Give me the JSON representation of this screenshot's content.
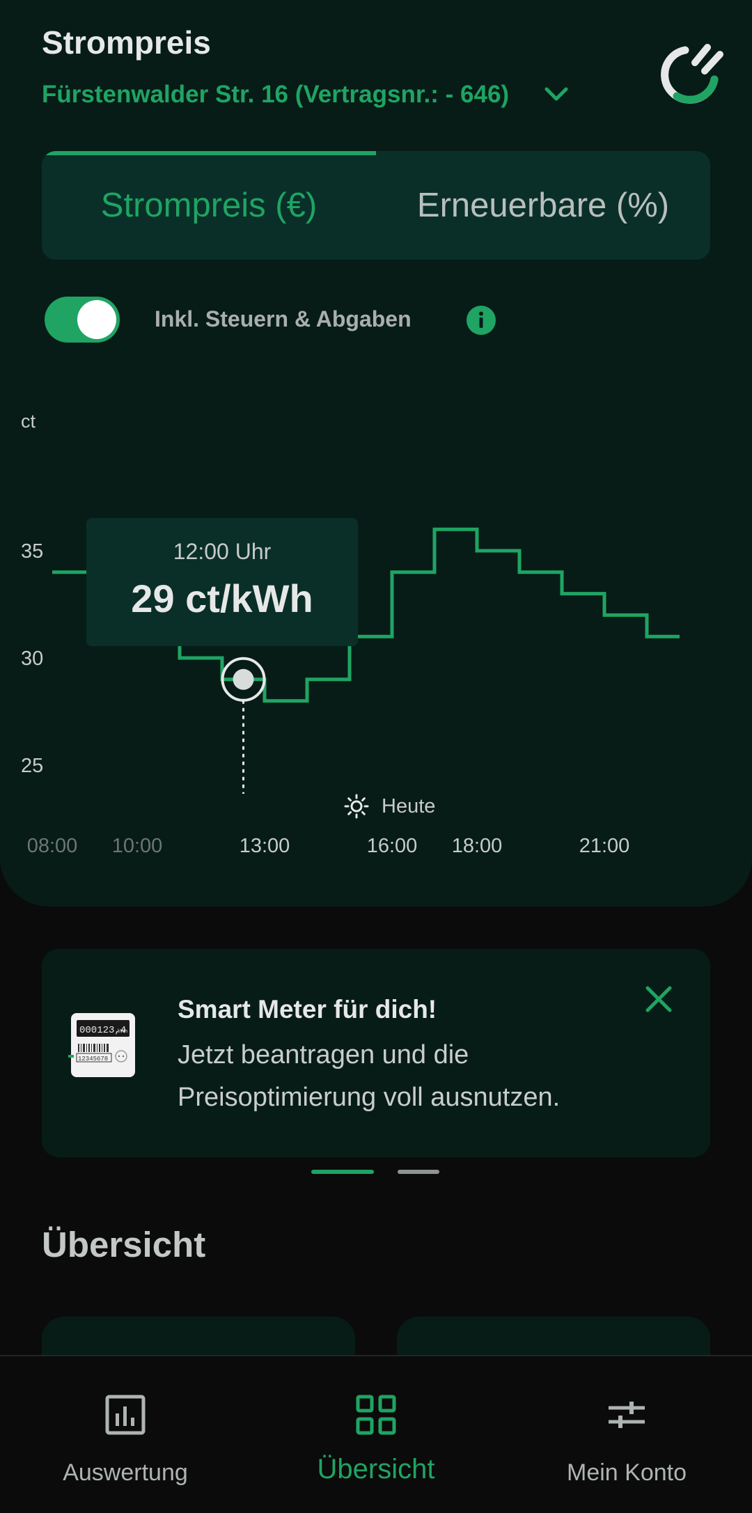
{
  "header": {
    "title": "Strompreis",
    "contract": "Fürstenwalder Str. 16 (Vertragsnr.: - 646)"
  },
  "tabs": [
    {
      "label": "Strompreis (€)",
      "active": true
    },
    {
      "label": "Erneuerbare (%)",
      "active": false
    }
  ],
  "toggle": {
    "label": "Inkl. Steuern & Abgaben",
    "on": true
  },
  "chart_data": {
    "type": "line",
    "step": true,
    "ylabel": "ct",
    "yticks": [
      "35",
      "30",
      "25"
    ],
    "xticks": [
      "08:00",
      "10:00",
      "13:00",
      "16:00",
      "18:00",
      "21:00"
    ],
    "ylim": [
      23,
      40
    ],
    "x_hours": [
      8,
      9,
      10,
      11,
      12,
      13,
      14,
      15,
      16,
      17,
      18,
      19,
      20,
      21,
      22
    ],
    "values": [
      34,
      32,
      31,
      30,
      29,
      28,
      29,
      31,
      34,
      36,
      35,
      34,
      33,
      32,
      31
    ],
    "highlight": {
      "time": "12:00 Uhr",
      "value": "29 ct/kWh"
    },
    "today_label": "Heute",
    "colors": {
      "line": "#1fa463",
      "axis": "#c7cbc9",
      "past_tick": "#6e7674"
    }
  },
  "banner": {
    "title": "Smart Meter für dich!",
    "text": "Jetzt beantragen und die Preisoptimierung voll ausnutzen.",
    "meter_display": "000123,4",
    "meter_unit": "kWh",
    "meter_serial": "12345678",
    "close_icon": "close-icon"
  },
  "overview": {
    "title": "Übersicht"
  },
  "nav": [
    {
      "label": "Auswertung",
      "icon": "bar-chart-icon",
      "active": false
    },
    {
      "label": "Übersicht",
      "icon": "grid-icon",
      "active": true
    },
    {
      "label": "Mein Konto",
      "icon": "sliders-icon",
      "active": false
    }
  ],
  "colors": {
    "accent": "#1fa463",
    "panel": "#071c17",
    "background": "#0b0b0b"
  }
}
